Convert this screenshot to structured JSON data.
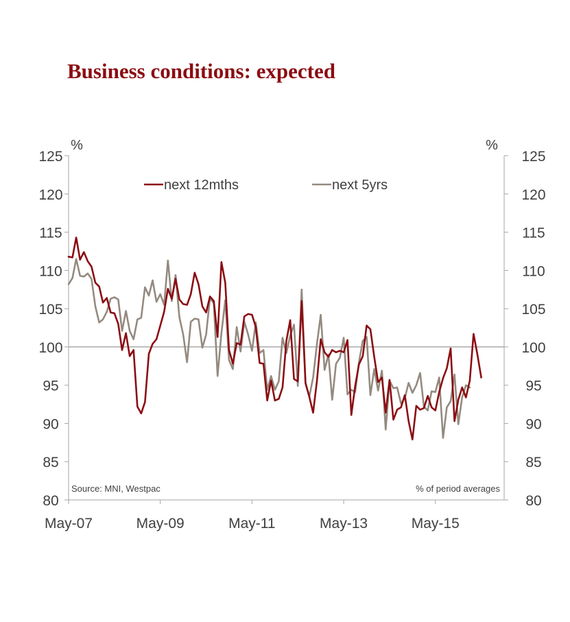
{
  "chart_data": {
    "type": "line",
    "title": "Business conditions: expected",
    "unit_left": "%",
    "unit_right": "%",
    "source": "Source: MNI, Westpac",
    "note": "% of period averages",
    "ylim": [
      80,
      125
    ],
    "y_ticks": [
      80,
      85,
      90,
      95,
      100,
      105,
      110,
      115,
      120,
      125
    ],
    "x_start": "2007-05",
    "x_end": "2016-11",
    "x_tick_labels": [
      {
        "date": "2007-05",
        "label": "May-07"
      },
      {
        "date": "2009-05",
        "label": "May-09"
      },
      {
        "date": "2011-05",
        "label": "May-11"
      },
      {
        "date": "2013-05",
        "label": "May-13"
      },
      {
        "date": "2015-05",
        "label": "May-15"
      }
    ],
    "reference_line": 100,
    "legend_position": "top",
    "colors": {
      "next_12mths": "#8b0d12",
      "next_5yrs": "#948a80",
      "axis": "#a6a6a6"
    },
    "series": [
      {
        "name": "next 12mths",
        "color": "#8b0d12",
        "points": [
          [
            "2007-05",
            111.8
          ],
          [
            "2007-06",
            111.7
          ],
          [
            "2007-07",
            114.3
          ],
          [
            "2007-08",
            111.4
          ],
          [
            "2007-09",
            112.4
          ],
          [
            "2007-10",
            111.2
          ],
          [
            "2007-11",
            110.5
          ],
          [
            "2007-12",
            108.4
          ],
          [
            "2008-01",
            107.9
          ],
          [
            "2008-02",
            105.8
          ],
          [
            "2008-03",
            106.4
          ],
          [
            "2008-04",
            104.5
          ],
          [
            "2008-05",
            104.4
          ],
          [
            "2008-06",
            103.0
          ],
          [
            "2008-07",
            99.6
          ],
          [
            "2008-08",
            101.8
          ],
          [
            "2008-09",
            98.8
          ],
          [
            "2008-10",
            99.6
          ],
          [
            "2008-11",
            92.2
          ],
          [
            "2008-12",
            91.3
          ],
          [
            "2009-01",
            92.8
          ],
          [
            "2009-02",
            99.1
          ],
          [
            "2009-03",
            100.4
          ],
          [
            "2009-04",
            101.0
          ],
          [
            "2009-05",
            102.8
          ],
          [
            "2009-06",
            104.6
          ],
          [
            "2009-07",
            107.6
          ],
          [
            "2009-08",
            106.3
          ],
          [
            "2009-09",
            108.9
          ],
          [
            "2009-10",
            106.2
          ],
          [
            "2009-11",
            105.6
          ],
          [
            "2009-12",
            105.5
          ],
          [
            "2010-01",
            106.9
          ],
          [
            "2010-02",
            109.7
          ],
          [
            "2010-03",
            108.2
          ],
          [
            "2010-04",
            105.3
          ],
          [
            "2010-05",
            104.5
          ],
          [
            "2010-06",
            106.6
          ],
          [
            "2010-07",
            106.0
          ],
          [
            "2010-08",
            101.3
          ],
          [
            "2010-09",
            111.1
          ],
          [
            "2010-10",
            108.4
          ],
          [
            "2010-11",
            99.6
          ],
          [
            "2010-12",
            97.8
          ],
          [
            "2011-01",
            100.5
          ],
          [
            "2011-02",
            100.3
          ],
          [
            "2011-03",
            104.0
          ],
          [
            "2011-04",
            104.3
          ],
          [
            "2011-05",
            104.2
          ],
          [
            "2011-06",
            102.6
          ],
          [
            "2011-07",
            97.9
          ],
          [
            "2011-08",
            97.8
          ],
          [
            "2011-09",
            93.0
          ],
          [
            "2011-10",
            95.6
          ],
          [
            "2011-11",
            93.0
          ],
          [
            "2011-12",
            93.2
          ],
          [
            "2012-01",
            94.7
          ],
          [
            "2012-02",
            100.8
          ],
          [
            "2012-03",
            103.5
          ],
          [
            "2012-04",
            95.8
          ],
          [
            "2012-05",
            95.5
          ],
          [
            "2012-06",
            106.0
          ],
          [
            "2012-07",
            95.3
          ],
          [
            "2012-08",
            93.5
          ],
          [
            "2012-09",
            91.4
          ],
          [
            "2012-10",
            95.6
          ],
          [
            "2012-11",
            101.0
          ],
          [
            "2012-12",
            99.3
          ],
          [
            "2013-01",
            98.7
          ],
          [
            "2013-02",
            99.6
          ],
          [
            "2013-03",
            99.3
          ],
          [
            "2013-04",
            99.5
          ],
          [
            "2013-05",
            99.3
          ],
          [
            "2013-06",
            100.9
          ],
          [
            "2013-07",
            91.1
          ],
          [
            "2013-08",
            94.9
          ],
          [
            "2013-09",
            97.7
          ],
          [
            "2013-10",
            98.8
          ],
          [
            "2013-11",
            102.8
          ],
          [
            "2013-12",
            102.3
          ],
          [
            "2014-01",
            98.7
          ],
          [
            "2014-02",
            95.4
          ],
          [
            "2014-03",
            96.0
          ],
          [
            "2014-04",
            91.4
          ],
          [
            "2014-05",
            95.7
          ],
          [
            "2014-06",
            90.5
          ],
          [
            "2014-07",
            91.8
          ],
          [
            "2014-08",
            92.1
          ],
          [
            "2014-09",
            93.7
          ],
          [
            "2014-10",
            90.3
          ],
          [
            "2014-11",
            87.9
          ],
          [
            "2014-12",
            92.3
          ],
          [
            "2015-01",
            91.8
          ],
          [
            "2015-02",
            92.0
          ],
          [
            "2015-03",
            93.6
          ],
          [
            "2015-04",
            92.1
          ],
          [
            "2015-05",
            91.7
          ],
          [
            "2015-06",
            94.1
          ],
          [
            "2015-07",
            95.9
          ],
          [
            "2015-08",
            97.2
          ],
          [
            "2015-09",
            99.8
          ],
          [
            "2015-10",
            90.3
          ],
          [
            "2015-11",
            93.1
          ],
          [
            "2015-12",
            94.7
          ],
          [
            "2016-01",
            93.4
          ],
          [
            "2016-02",
            95.6
          ],
          [
            "2016-03",
            101.7
          ],
          [
            "2016-04",
            99.0
          ],
          [
            "2016-05",
            96.0
          ]
        ]
      },
      {
        "name": "next 5yrs",
        "color": "#948a80",
        "points": [
          [
            "2007-05",
            108.2
          ],
          [
            "2007-06",
            109.0
          ],
          [
            "2007-07",
            111.5
          ],
          [
            "2007-08",
            109.3
          ],
          [
            "2007-09",
            109.2
          ],
          [
            "2007-10",
            109.6
          ],
          [
            "2007-11",
            108.9
          ],
          [
            "2007-12",
            105.3
          ],
          [
            "2008-01",
            103.2
          ],
          [
            "2008-02",
            103.6
          ],
          [
            "2008-03",
            104.6
          ],
          [
            "2008-04",
            106.3
          ],
          [
            "2008-05",
            106.5
          ],
          [
            "2008-06",
            106.2
          ],
          [
            "2008-07",
            102.1
          ],
          [
            "2008-08",
            104.7
          ],
          [
            "2008-09",
            102.1
          ],
          [
            "2008-10",
            101.0
          ],
          [
            "2008-11",
            103.6
          ],
          [
            "2008-12",
            103.8
          ],
          [
            "2009-01",
            107.8
          ],
          [
            "2009-02",
            106.7
          ],
          [
            "2009-03",
            108.7
          ],
          [
            "2009-04",
            105.9
          ],
          [
            "2009-05",
            106.9
          ],
          [
            "2009-06",
            105.5
          ],
          [
            "2009-07",
            111.3
          ],
          [
            "2009-08",
            106.0
          ],
          [
            "2009-09",
            109.4
          ],
          [
            "2009-10",
            103.9
          ],
          [
            "2009-11",
            101.6
          ],
          [
            "2009-12",
            98.0
          ],
          [
            "2010-01",
            103.3
          ],
          [
            "2010-02",
            103.7
          ],
          [
            "2010-03",
            103.6
          ],
          [
            "2010-04",
            99.9
          ],
          [
            "2010-05",
            101.6
          ],
          [
            "2010-06",
            106.4
          ],
          [
            "2010-07",
            105.7
          ],
          [
            "2010-08",
            96.2
          ],
          [
            "2010-09",
            101.8
          ],
          [
            "2010-10",
            106.1
          ],
          [
            "2010-11",
            98.3
          ],
          [
            "2010-12",
            97.1
          ],
          [
            "2011-01",
            102.6
          ],
          [
            "2011-02",
            99.4
          ],
          [
            "2011-03",
            103.3
          ],
          [
            "2011-04",
            101.6
          ],
          [
            "2011-05",
            99.5
          ],
          [
            "2011-06",
            103.2
          ],
          [
            "2011-07",
            99.2
          ],
          [
            "2011-08",
            99.6
          ],
          [
            "2011-09",
            94.4
          ],
          [
            "2011-10",
            96.2
          ],
          [
            "2011-11",
            94.4
          ],
          [
            "2011-12",
            95.5
          ],
          [
            "2012-01",
            101.2
          ],
          [
            "2012-02",
            99.2
          ],
          [
            "2012-03",
            101.5
          ],
          [
            "2012-04",
            102.9
          ],
          [
            "2012-05",
            94.9
          ],
          [
            "2012-06",
            107.5
          ],
          [
            "2012-07",
            95.2
          ],
          [
            "2012-08",
            93.5
          ],
          [
            "2012-09",
            96.0
          ],
          [
            "2012-10",
            100.4
          ],
          [
            "2012-11",
            104.2
          ],
          [
            "2012-12",
            97.0
          ],
          [
            "2013-01",
            99.0
          ],
          [
            "2013-02",
            93.1
          ],
          [
            "2013-03",
            97.8
          ],
          [
            "2013-04",
            98.6
          ],
          [
            "2013-05",
            101.2
          ],
          [
            "2013-06",
            93.8
          ],
          [
            "2013-07",
            94.4
          ],
          [
            "2013-08",
            94.1
          ],
          [
            "2013-09",
            98.0
          ],
          [
            "2013-10",
            100.8
          ],
          [
            "2013-11",
            101.3
          ],
          [
            "2013-12",
            93.7
          ],
          [
            "2014-01",
            97.1
          ],
          [
            "2014-02",
            94.3
          ],
          [
            "2014-03",
            96.9
          ],
          [
            "2014-04",
            89.2
          ],
          [
            "2014-05",
            95.6
          ],
          [
            "2014-06",
            94.6
          ],
          [
            "2014-07",
            94.7
          ],
          [
            "2014-08",
            92.6
          ],
          [
            "2014-09",
            93.3
          ],
          [
            "2014-10",
            95.3
          ],
          [
            "2014-11",
            94.0
          ],
          [
            "2014-12",
            95.0
          ],
          [
            "2015-01",
            96.6
          ],
          [
            "2015-02",
            92.2
          ],
          [
            "2015-03",
            91.7
          ],
          [
            "2015-04",
            94.2
          ],
          [
            "2015-05",
            94.1
          ],
          [
            "2015-06",
            96.0
          ],
          [
            "2015-07",
            88.1
          ],
          [
            "2015-08",
            92.1
          ],
          [
            "2015-09",
            92.9
          ],
          [
            "2015-10",
            96.4
          ],
          [
            "2015-11",
            89.9
          ],
          [
            "2015-12",
            93.4
          ],
          [
            "2016-01",
            95.0
          ],
          [
            "2016-02",
            94.7
          ]
        ]
      }
    ]
  }
}
